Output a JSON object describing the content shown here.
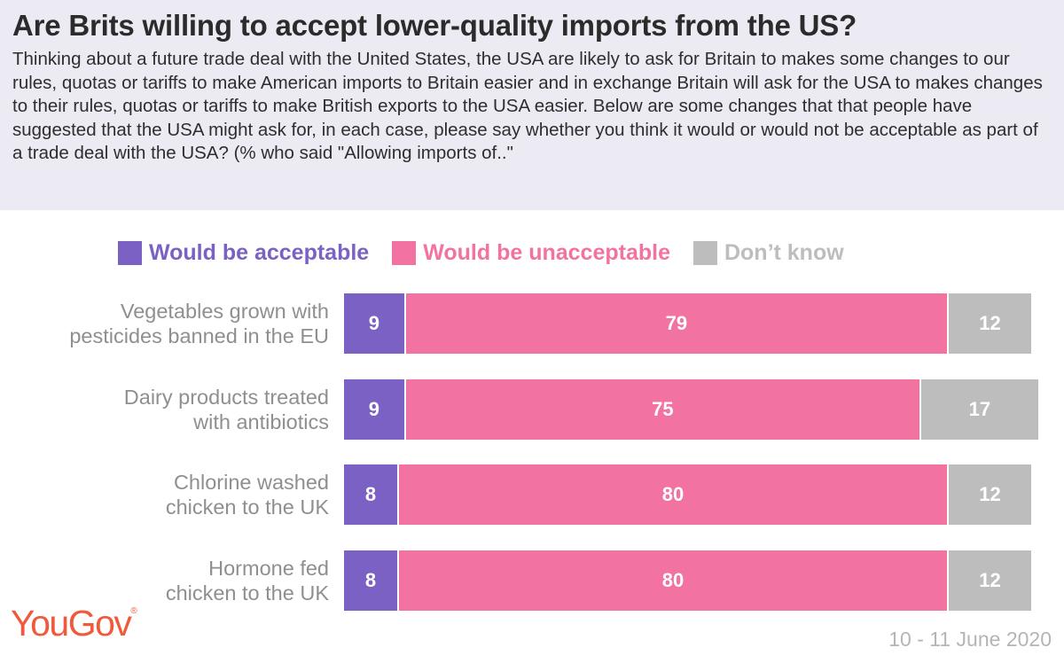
{
  "header": {
    "title": "Are Brits willing to accept lower-quality imports from the US?",
    "subtitle": "Thinking about a future trade deal with the United States, the USA are likely to ask for Britain to makes some changes to our rules, quotas or tariffs to make American imports to Britain easier and in exchange Britain will ask for the USA to makes changes to their rules, quotas or tariffs to make British exports to the USA easier. Below are some changes that that people have suggested that the USA might ask for, in each case, please say whether you think it would or would not be acceptable as part of a trade deal with the USA? (% who said \"Allowing imports of..\""
  },
  "colors": {
    "header_bg": "#ecebf4",
    "acceptable": "#7b61c4",
    "unacceptable": "#f272a1",
    "dont_know": "#bdbdbd",
    "logo": "#f05a3b"
  },
  "chart_data": {
    "type": "bar",
    "orientation": "horizontal",
    "stacked": true,
    "title": "Are Brits willing to accept lower-quality imports from the US?",
    "xlabel": "",
    "ylabel": "",
    "xlim": [
      0,
      100
    ],
    "categories": [
      "Vegetables grown with pesticides banned in the EU",
      "Dairy products treated with antibiotics",
      "Chlorine washed chicken to the UK",
      "Hormone fed chicken to the UK"
    ],
    "category_lines": [
      [
        "Vegetables grown with",
        "pesticides banned in the EU"
      ],
      [
        "Dairy products treated",
        "with antibiotics"
      ],
      [
        "Chlorine washed",
        "chicken to the UK"
      ],
      [
        "Hormone fed",
        "chicken to the UK"
      ]
    ],
    "series": [
      {
        "name": "Would be acceptable",
        "color": "#7b61c4",
        "values": [
          9,
          9,
          8,
          8
        ]
      },
      {
        "name": "Would be unacceptable",
        "color": "#f272a1",
        "values": [
          79,
          75,
          80,
          80
        ]
      },
      {
        "name": "Don't know",
        "color": "#bdbdbd",
        "values": [
          12,
          17,
          12,
          12
        ]
      }
    ],
    "legend_position": "top"
  },
  "legend": [
    {
      "label": "Would be acceptable",
      "color": "#7b61c4"
    },
    {
      "label": "Would be unacceptable",
      "color": "#f272a1"
    },
    {
      "label": "Don’t know",
      "color": "#bdbdbd"
    }
  ],
  "footer": {
    "brand": "YouGov",
    "brand_mark": "®",
    "date": "10 - 11 June 2020"
  }
}
